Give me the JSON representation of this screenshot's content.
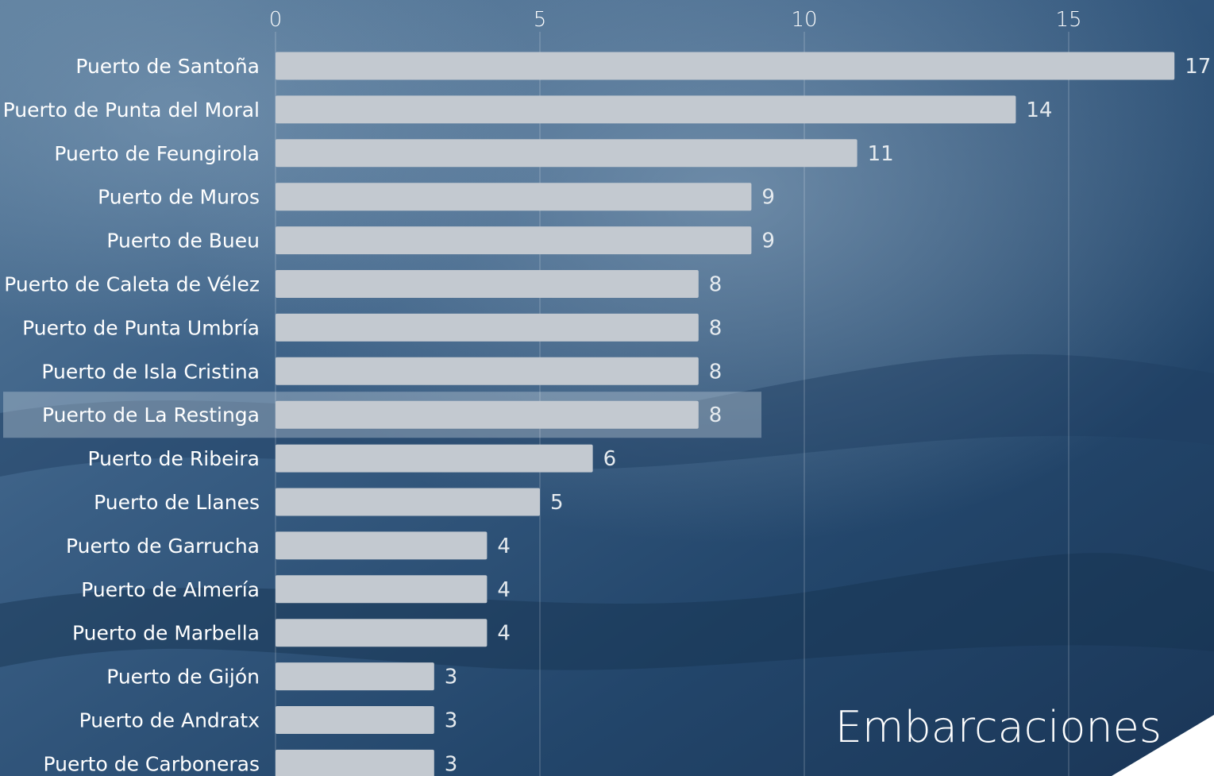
{
  "colors": {
    "bar": "#c3c9d0",
    "highlight": "rgba(210,220,230,0.35)",
    "background": "#2c4c6e"
  },
  "legend_title": "Embarcaciones",
  "chart_data": {
    "type": "bar",
    "orientation": "horizontal",
    "categories": [
      "Puerto de Santoña",
      "Puerto de Punta del Moral",
      "Puerto de Feungirola",
      "Puerto de Muros",
      "Puerto de Bueu",
      "Puerto de Caleta de Vélez",
      "Puerto de Punta Umbría",
      "Puerto de Isla Cristina",
      "Puerto de La Restinga",
      "Puerto de Ribeira",
      "Puerto de Llanes",
      "Puerto de Garrucha",
      "Puerto de Almería",
      "Puerto de Marbella",
      "Puerto de Gijón",
      "Puerto de Andratx",
      "Puerto de Carboneras"
    ],
    "values": [
      17,
      14,
      11,
      9,
      9,
      8,
      8,
      8,
      8,
      6,
      5,
      4,
      4,
      4,
      3,
      3,
      3
    ],
    "x_ticks": [
      "0",
      "5",
      "10",
      "15"
    ],
    "xlim": [
      0,
      17
    ],
    "highlighted_category": "Puerto de La Restinga",
    "grid": true,
    "axis_position": "top"
  }
}
